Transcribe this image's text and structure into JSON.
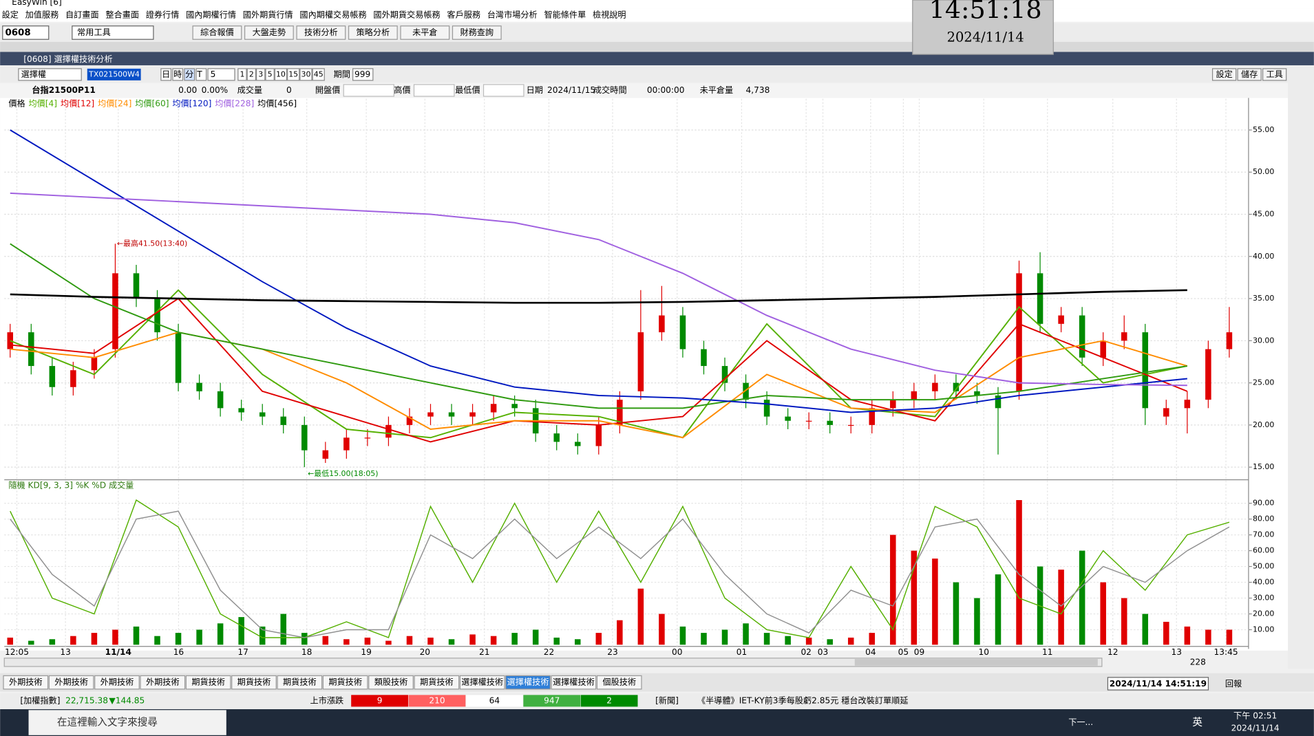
{
  "app_title": "EasyWin [6]",
  "menu": [
    "設定",
    "加值服務",
    "自訂畫面",
    "整合畫面",
    "證券行情",
    "國內期權行情",
    "國外期貨行情",
    "國內期權交易帳務",
    "國外期貨交易帳務",
    "客戶服務",
    "台灣市場分析",
    "智能條件單",
    "檢視說明"
  ],
  "toolbar": {
    "code": "0608",
    "tool": "常用工具",
    "buttons": [
      "綜合報價",
      "大盤走勢",
      "技術分析",
      "策略分析",
      "未平倉",
      "財務查詢"
    ]
  },
  "clock": {
    "time": "14:51:18",
    "date": "2024/11/14"
  },
  "window_title": "[0608] 選擇權技術分析",
  "chart_toolbar": {
    "kind": "選擇權",
    "contract": "TX021500W4",
    "periods": [
      "日",
      "時",
      "分",
      "T"
    ],
    "period": "5",
    "minutes": [
      "1",
      "2",
      "3",
      "5",
      "10",
      "15",
      "30",
      "45"
    ],
    "count_label": "期間",
    "count": "999",
    "actions": [
      "設定",
      "儲存",
      "工具"
    ]
  },
  "info": {
    "name": "台指21500P11",
    "change": "0.00",
    "change_pct": "0.00%",
    "labels": [
      "成交量",
      "開盤價",
      "最高價",
      "最低價",
      "日期",
      "成交時間",
      "未平倉量"
    ],
    "volume": "0",
    "date": "2024/11/15",
    "time": "00:00:00",
    "open_interest": "4,738"
  },
  "chart_data": [
    {
      "type": "candlestick",
      "legend_title": "價格",
      "ylim": [
        13.6,
        58.7
      ],
      "yticks": [
        {
          "value": 55,
          "label": "55.00"
        },
        {
          "value": 50,
          "label": "50.00"
        },
        {
          "value": 45,
          "label": "45.00"
        },
        {
          "value": 40,
          "label": "40.00"
        },
        {
          "value": 35,
          "label": "35.00"
        },
        {
          "value": 30,
          "label": "30.00"
        },
        {
          "value": 25,
          "label": "25.00"
        },
        {
          "value": 20,
          "label": "20.00"
        },
        {
          "value": 15,
          "label": "15.00"
        }
      ],
      "grid": true,
      "open": [
        29,
        31,
        27,
        24.5,
        26.5,
        29,
        38,
        35,
        31,
        25,
        24,
        22,
        21.5,
        21,
        20,
        16,
        17,
        18.5,
        18.5,
        20,
        21,
        21.5,
        21,
        21.5,
        22.5,
        22,
        19,
        18,
        17.5,
        20,
        24,
        31,
        33,
        29,
        27,
        25,
        23,
        21,
        20.5,
        20.5,
        20,
        20,
        22,
        23,
        24,
        25,
        24,
        23.5,
        24,
        38,
        32,
        33,
        28,
        30,
        31,
        21,
        22,
        23,
        29
      ],
      "high": [
        32,
        32,
        28,
        27.5,
        29,
        41.5,
        39,
        36,
        32,
        26,
        25,
        23,
        22.5,
        22,
        21,
        18,
        19.5,
        19.5,
        21,
        22,
        22.5,
        22.5,
        22.5,
        23.5,
        23.5,
        23,
        20,
        19,
        21,
        24,
        36,
        36.5,
        34,
        30,
        28,
        26,
        24,
        22,
        21.5,
        21.5,
        21,
        23,
        24,
        25,
        26,
        26,
        25,
        24.5,
        39.5,
        40.5,
        34,
        34,
        31,
        33,
        32,
        23,
        24,
        30,
        34
      ],
      "low": [
        28,
        26,
        23.5,
        23.5,
        25.5,
        28,
        34,
        30,
        24,
        23,
        21,
        20.5,
        20,
        19,
        15,
        15.5,
        16,
        17.5,
        17.5,
        19,
        20,
        20,
        20,
        20.5,
        21,
        18,
        17,
        16.5,
        16.5,
        19,
        23,
        30,
        28,
        26,
        24,
        22,
        20,
        19.5,
        19.5,
        19,
        19,
        19,
        21,
        22,
        23,
        23,
        22.5,
        16.5,
        23,
        31,
        31,
        27,
        27,
        29,
        20,
        20,
        19,
        22,
        28
      ],
      "close": [
        31,
        27,
        24.5,
        26.5,
        28,
        38,
        35,
        31,
        25,
        24,
        22,
        21.5,
        21,
        20,
        17,
        17,
        18.5,
        18.5,
        20,
        21,
        21.5,
        21,
        21.5,
        22.5,
        22,
        19,
        18,
        17.5,
        20,
        23,
        31,
        33,
        29,
        27,
        25,
        23,
        21,
        20.5,
        20.5,
        20,
        20,
        22,
        23,
        24,
        25,
        24,
        23.5,
        22,
        38,
        32,
        33,
        28,
        30,
        31,
        22,
        22,
        23,
        29,
        31
      ],
      "series": [
        {
          "name": "均價[4]",
          "color": "#55b000",
          "values": [
            30,
            26,
            36,
            26,
            19.5,
            18.5,
            21.5,
            21,
            18.5,
            32,
            22,
            21,
            34,
            25,
            27
          ]
        },
        {
          "name": "均價[12]",
          "color": "#e00000",
          "values": [
            29.5,
            28.5,
            35,
            24,
            21,
            18,
            20.5,
            20,
            21,
            30,
            23,
            20.5,
            32,
            28,
            24
          ]
        },
        {
          "name": "均價[24]",
          "color": "#ff8c00",
          "values": [
            29,
            28,
            31,
            29,
            25,
            19.5,
            20.5,
            20.5,
            18.5,
            26,
            22,
            21.5,
            28,
            30,
            27
          ]
        },
        {
          "name": "均價[60]",
          "color": "#2f9a10",
          "values": [
            41.5,
            35,
            31,
            29,
            27,
            25,
            23,
            22,
            22,
            23.5,
            23,
            23,
            24,
            25.5,
            27
          ]
        },
        {
          "name": "均價[120]",
          "color": "#0018c0",
          "values": [
            55,
            49,
            43,
            37,
            31.5,
            27,
            24.5,
            23.5,
            23.2,
            22.5,
            21.5,
            22,
            23.5,
            24.5,
            25.5
          ]
        },
        {
          "name": "均價[228]",
          "color": "#a060e0",
          "values": [
            47.5,
            47,
            46.5,
            46,
            45.5,
            45,
            44,
            42,
            38,
            33,
            29,
            26.5,
            25,
            24.8,
            24.7
          ]
        },
        {
          "name": "均價[456]",
          "color": "#000000",
          "values": [
            35.5,
            35.2,
            35,
            34.8,
            34.7,
            34.6,
            34.5,
            34.5,
            34.6,
            34.8,
            35,
            35.2,
            35.5,
            35.8,
            36
          ]
        }
      ],
      "annotations": [
        "←最高41.50(13:40)",
        "←最低15.00(18:05)"
      ]
    },
    {
      "type": "line",
      "title": "隨機 KD[9, 3, 3] %K %D 成交量",
      "ylim": [
        0.5,
        102.2
      ],
      "yticks": [
        {
          "value": 90,
          "label": "90.00"
        },
        {
          "value": 80,
          "label": "80.00"
        },
        {
          "value": 70,
          "label": "70.00"
        },
        {
          "value": 60,
          "label": "60.00"
        },
        {
          "value": 50,
          "label": "50.00"
        },
        {
          "value": 40,
          "label": "40.00"
        },
        {
          "value": 30,
          "label": "30.00"
        },
        {
          "value": 20,
          "label": "20.00"
        },
        {
          "value": 10,
          "label": "10.00"
        }
      ],
      "series": [
        {
          "name": "%K",
          "color": "#55b000",
          "values": [
            85,
            30,
            20,
            92,
            75,
            20,
            5,
            5,
            15,
            5,
            88,
            40,
            90,
            40,
            85,
            40,
            88,
            30,
            10,
            5,
            50,
            10,
            88,
            75,
            30,
            20,
            60,
            35,
            70,
            78
          ]
        },
        {
          "name": "%D",
          "color": "#909090",
          "values": [
            80,
            45,
            25,
            80,
            85,
            35,
            10,
            5,
            10,
            10,
            70,
            55,
            80,
            55,
            75,
            55,
            80,
            45,
            20,
            8,
            35,
            25,
            75,
            80,
            45,
            25,
            50,
            40,
            60,
            75
          ]
        }
      ],
      "volume": [
        5,
        3,
        4,
        6,
        8,
        10,
        12,
        6,
        8,
        10,
        14,
        18,
        12,
        20,
        8,
        6,
        4,
        5,
        3,
        6,
        5,
        4,
        7,
        6,
        8,
        10,
        5,
        4,
        8,
        16,
        36,
        20,
        12,
        8,
        10,
        14,
        8,
        6,
        5,
        4,
        5,
        8,
        70,
        60,
        55,
        40,
        30,
        45,
        92,
        50,
        48,
        60,
        40,
        30,
        20,
        15,
        12,
        10,
        10
      ]
    }
  ],
  "time_axis": [
    "12:05",
    "13",
    "11/14",
    "16",
    "17",
    "18",
    "19",
    "20",
    "21",
    "22",
    "23",
    "00",
    "01",
    "02",
    "03",
    "04",
    "05",
    "09",
    "10",
    "11",
    "12",
    "13",
    "13:45"
  ],
  "scroll_count": "228",
  "tabs": [
    "外期技術",
    "外期技術",
    "外期技術",
    "外期技術",
    "期貨技術",
    "期貨技術",
    "期貨技術",
    "期貨技術",
    "類股技術",
    "期貨技術",
    "選擇權技術",
    "選擇權技術",
    "選擇權技術",
    "個股技術"
  ],
  "active_tab": 11,
  "status": {
    "index_label": "[加權指數]",
    "index": "22,715.38",
    "index_change": "▼144.85",
    "breadth_label": "上市漲跌",
    "breadth": [
      "9",
      "210",
      "64",
      "947",
      "2"
    ],
    "news_label": "[新聞]",
    "news": "《半導體》IET-KY前3季每股虧2.85元 穩台改裝訂單順延",
    "datetime": "2024/11/14 14:51:19",
    "report": "回報"
  },
  "taskbar": {
    "search": "在這裡輸入文字來搜尋",
    "next": "下一...",
    "ime": "英",
    "time": "下午 02:51",
    "date": "2024/11/14"
  }
}
